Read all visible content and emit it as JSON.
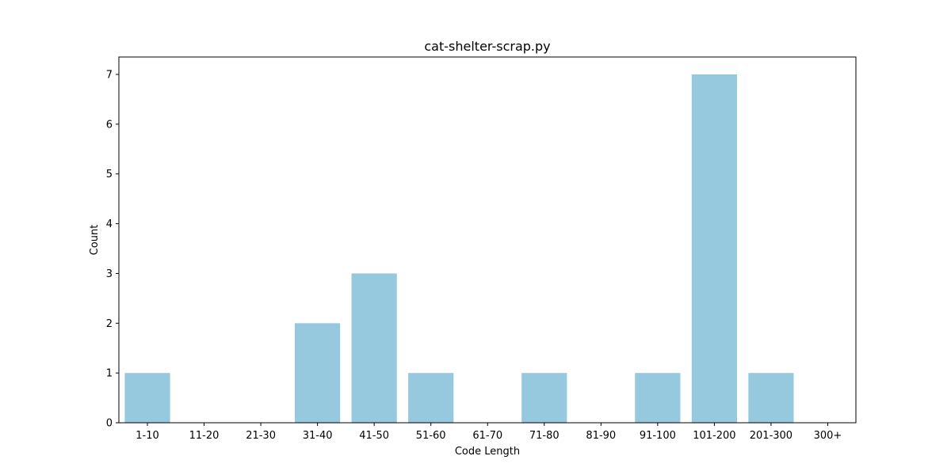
{
  "chart_data": {
    "type": "bar",
    "title": "cat-shelter-scrap.py",
    "xlabel": "Code Length",
    "ylabel": "Count",
    "categories": [
      "1-10",
      "11-20",
      "21-30",
      "31-40",
      "41-50",
      "51-60",
      "61-70",
      "71-80",
      "81-90",
      "91-100",
      "101-200",
      "201-300",
      "300+"
    ],
    "values": [
      1,
      0,
      0,
      2,
      3,
      1,
      0,
      1,
      0,
      1,
      7,
      1,
      0
    ],
    "ylim": [
      0,
      7.35
    ],
    "yticks": [
      "0",
      "1",
      "2",
      "3",
      "4",
      "5",
      "6",
      "7"
    ],
    "grid": false,
    "bar_color": "#96c9de"
  }
}
